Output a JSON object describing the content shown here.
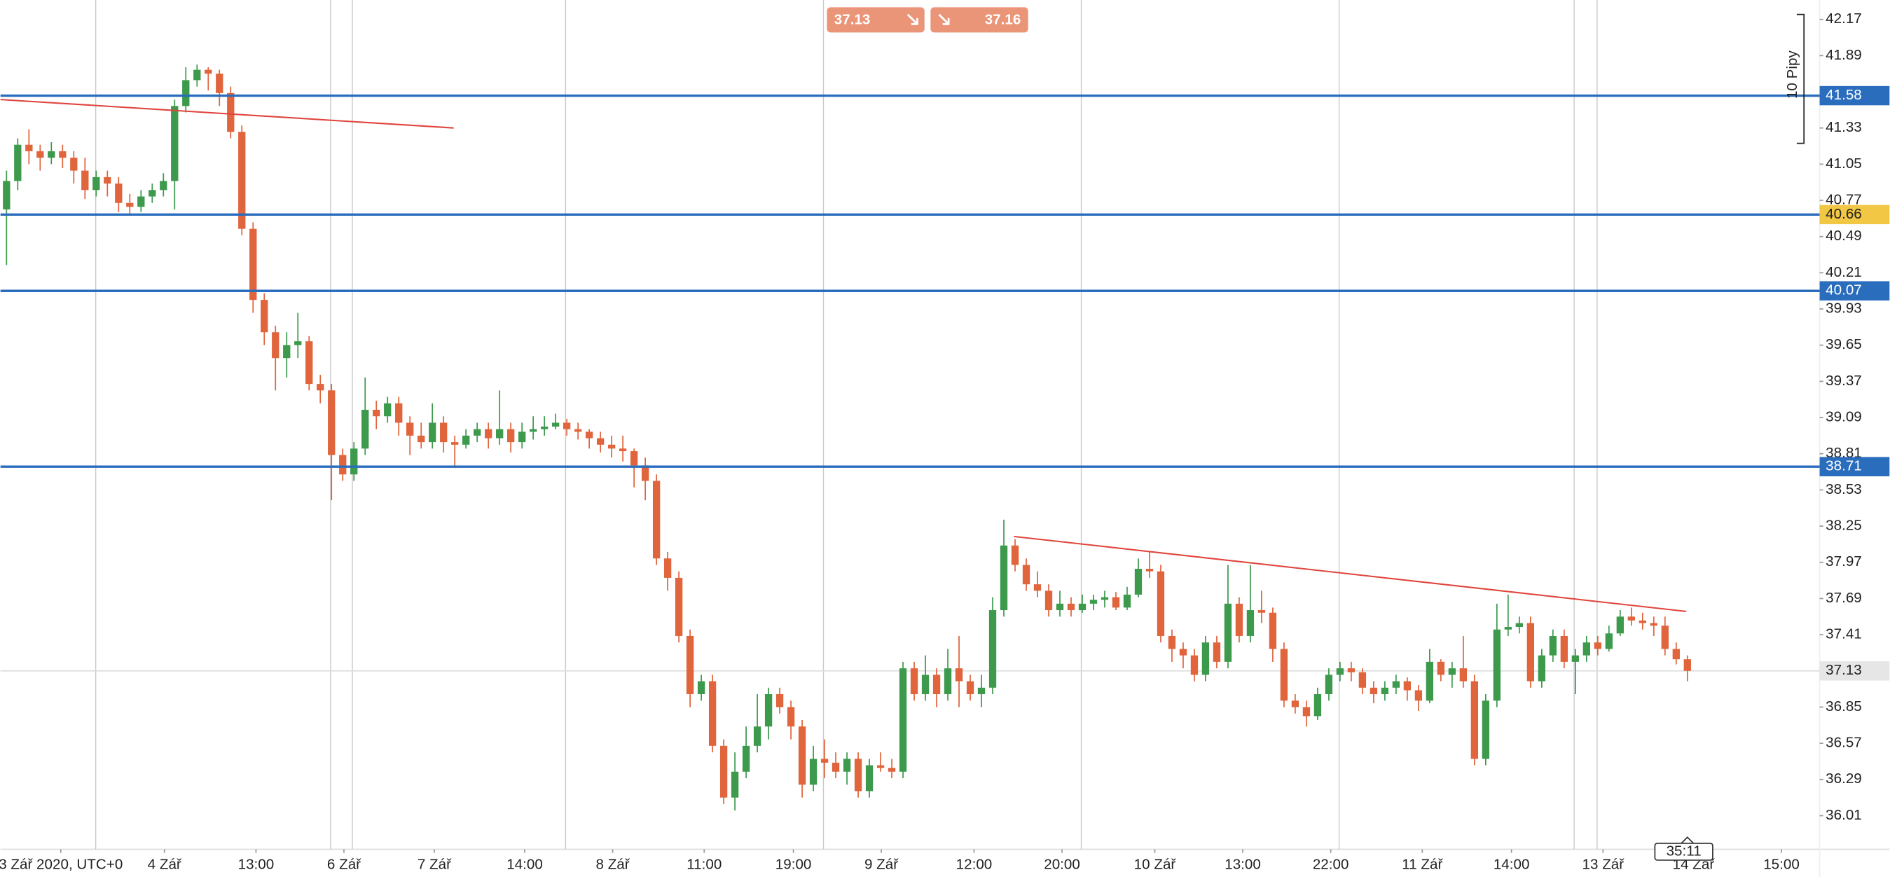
{
  "chart_data": {
    "type": "candlestick",
    "up_color": "#3d9a4d",
    "down_color": "#e0643c",
    "grid": true,
    "ylim": [
      35.75,
      42.32
    ],
    "yticks": [
      36.01,
      36.29,
      36.57,
      36.85,
      37.41,
      37.69,
      37.97,
      38.25,
      38.53,
      38.81,
      39.09,
      39.37,
      39.65,
      39.93,
      40.21,
      40.49,
      40.77,
      41.05,
      41.33,
      41.89,
      42.17
    ],
    "xlim": [
      -0.54,
      161.8
    ],
    "xticks": [
      {
        "value": 4.84,
        "label": "3 Zář 2020, UTC+0"
      },
      {
        "value": 14.09,
        "label": "4 Zář"
      },
      {
        "value": 22.26,
        "label": "13:00"
      },
      {
        "value": 30.11,
        "label": "6 Zář"
      },
      {
        "value": 38.17,
        "label": "7 Zář"
      },
      {
        "value": 46.24,
        "label": "14:00"
      },
      {
        "value": 54.09,
        "label": "8 Zář"
      },
      {
        "value": 62.26,
        "label": "11:00"
      },
      {
        "value": 70.22,
        "label": "19:00"
      },
      {
        "value": 78.06,
        "label": "9 Zář"
      },
      {
        "value": 86.34,
        "label": "12:00"
      },
      {
        "value": 94.19,
        "label": "20:00"
      },
      {
        "value": 102.47,
        "label": "10 Zář"
      },
      {
        "value": 110.32,
        "label": "13:00"
      },
      {
        "value": 118.17,
        "label": "22:00"
      },
      {
        "value": 126.34,
        "label": "11 Zář"
      },
      {
        "value": 134.3,
        "label": "14:00"
      },
      {
        "value": 142.47,
        "label": "13 Zář"
      },
      {
        "value": 150.54,
        "label": "14 Zář"
      },
      {
        "value": 158.39,
        "label": "15:00"
      }
    ],
    "xgrid": [
      7.96,
      28.92,
      30.86,
      49.89,
      72.9,
      95.91,
      118.92,
      139.89,
      141.94
    ],
    "ohlc": [
      [
        40.7,
        41.0,
        40.27,
        40.92
      ],
      [
        40.92,
        41.25,
        40.85,
        41.2
      ],
      [
        41.2,
        41.32,
        41.05,
        41.15
      ],
      [
        41.15,
        41.2,
        41.0,
        41.1
      ],
      [
        41.1,
        41.22,
        41.05,
        41.15
      ],
      [
        41.15,
        41.2,
        41.02,
        41.1
      ],
      [
        41.1,
        41.15,
        40.9,
        41.0
      ],
      [
        41.0,
        41.1,
        40.78,
        40.85
      ],
      [
        40.85,
        41.0,
        40.8,
        40.95
      ],
      [
        40.95,
        41.0,
        40.8,
        40.9
      ],
      [
        40.9,
        40.95,
        40.68,
        40.75
      ],
      [
        40.75,
        40.82,
        40.65,
        40.72
      ],
      [
        40.72,
        40.85,
        40.68,
        40.8
      ],
      [
        40.8,
        40.9,
        40.75,
        40.85
      ],
      [
        40.85,
        40.98,
        40.8,
        40.92
      ],
      [
        40.92,
        41.55,
        40.7,
        41.5
      ],
      [
        41.5,
        41.8,
        41.45,
        41.7
      ],
      [
        41.7,
        41.82,
        41.65,
        41.78
      ],
      [
        41.78,
        41.8,
        41.62,
        41.75
      ],
      [
        41.75,
        41.78,
        41.5,
        41.6
      ],
      [
        41.6,
        41.65,
        41.25,
        41.3
      ],
      [
        41.3,
        41.35,
        40.5,
        40.55
      ],
      [
        40.55,
        40.6,
        39.9,
        40.0
      ],
      [
        40.0,
        40.05,
        39.65,
        39.75
      ],
      [
        39.75,
        39.8,
        39.3,
        39.55
      ],
      [
        39.55,
        39.75,
        39.4,
        39.65
      ],
      [
        39.65,
        39.9,
        39.55,
        39.68
      ],
      [
        39.68,
        39.72,
        39.3,
        39.35
      ],
      [
        39.35,
        39.42,
        39.2,
        39.3
      ],
      [
        39.3,
        39.35,
        38.45,
        38.8
      ],
      [
        38.8,
        38.85,
        38.6,
        38.65
      ],
      [
        38.65,
        38.9,
        38.6,
        38.85
      ],
      [
        38.85,
        39.4,
        38.8,
        39.15
      ],
      [
        39.15,
        39.22,
        39.0,
        39.1
      ],
      [
        39.1,
        39.25,
        39.05,
        39.2
      ],
      [
        39.2,
        39.25,
        38.95,
        39.05
      ],
      [
        39.05,
        39.1,
        38.8,
        38.95
      ],
      [
        38.95,
        39.05,
        38.85,
        38.9
      ],
      [
        38.9,
        39.2,
        38.85,
        39.05
      ],
      [
        39.05,
        39.1,
        38.82,
        38.9
      ],
      [
        38.9,
        38.95,
        38.7,
        38.88
      ],
      [
        38.88,
        39.0,
        38.85,
        38.95
      ],
      [
        38.95,
        39.05,
        38.9,
        39.0
      ],
      [
        39.0,
        39.05,
        38.85,
        38.93
      ],
      [
        38.93,
        39.3,
        38.88,
        39.0
      ],
      [
        39.0,
        39.05,
        38.82,
        38.9
      ],
      [
        38.9,
        39.05,
        38.85,
        38.98
      ],
      [
        38.98,
        39.1,
        38.92,
        39.0
      ],
      [
        39.0,
        39.1,
        38.95,
        39.02
      ],
      [
        39.02,
        39.12,
        39.0,
        39.05
      ],
      [
        39.05,
        39.08,
        38.95,
        39.0
      ],
      [
        39.0,
        39.05,
        38.92,
        38.98
      ],
      [
        38.98,
        39.0,
        38.85,
        38.93
      ],
      [
        38.93,
        38.98,
        38.82,
        38.88
      ],
      [
        38.88,
        38.95,
        38.78,
        38.85
      ],
      [
        38.85,
        38.95,
        38.75,
        38.83
      ],
      [
        38.83,
        38.85,
        38.55,
        38.72
      ],
      [
        38.72,
        38.78,
        38.45,
        38.6
      ],
      [
        38.6,
        38.65,
        37.95,
        38.0
      ],
      [
        38.0,
        38.05,
        37.75,
        37.85
      ],
      [
        37.85,
        37.9,
        37.35,
        37.4
      ],
      [
        37.4,
        37.45,
        36.85,
        36.95
      ],
      [
        36.95,
        37.1,
        36.9,
        37.05
      ],
      [
        37.05,
        37.1,
        36.5,
        36.55
      ],
      [
        36.55,
        36.6,
        36.1,
        36.15
      ],
      [
        36.15,
        36.5,
        36.05,
        36.35
      ],
      [
        36.35,
        36.7,
        36.3,
        36.55
      ],
      [
        36.55,
        36.95,
        36.5,
        36.7
      ],
      [
        36.7,
        37.0,
        36.6,
        36.95
      ],
      [
        36.95,
        37.0,
        36.8,
        36.85
      ],
      [
        36.85,
        36.9,
        36.6,
        36.7
      ],
      [
        36.7,
        36.75,
        36.15,
        36.25
      ],
      [
        36.25,
        36.55,
        36.2,
        36.45
      ],
      [
        36.45,
        36.6,
        36.3,
        36.42
      ],
      [
        36.42,
        36.5,
        36.3,
        36.35
      ],
      [
        36.35,
        36.5,
        36.25,
        36.45
      ],
      [
        36.45,
        36.5,
        36.15,
        36.2
      ],
      [
        36.2,
        36.45,
        36.15,
        36.4
      ],
      [
        36.4,
        36.5,
        36.35,
        36.38
      ],
      [
        36.38,
        36.45,
        36.3,
        36.35
      ],
      [
        36.35,
        37.2,
        36.3,
        37.15
      ],
      [
        37.15,
        37.2,
        36.9,
        36.95
      ],
      [
        36.95,
        37.25,
        36.9,
        37.1
      ],
      [
        37.1,
        37.15,
        36.85,
        36.95
      ],
      [
        36.95,
        37.3,
        36.9,
        37.15
      ],
      [
        37.15,
        37.4,
        36.85,
        37.05
      ],
      [
        37.05,
        37.1,
        36.9,
        36.95
      ],
      [
        36.95,
        37.1,
        36.85,
        37.0
      ],
      [
        37.0,
        37.7,
        36.95,
        37.6
      ],
      [
        37.6,
        38.3,
        37.55,
        38.1
      ],
      [
        38.1,
        38.15,
        37.9,
        37.95
      ],
      [
        37.95,
        38.0,
        37.75,
        37.8
      ],
      [
        37.8,
        37.9,
        37.7,
        37.75
      ],
      [
        37.75,
        37.8,
        37.55,
        37.6
      ],
      [
        37.6,
        37.75,
        37.55,
        37.65
      ],
      [
        37.65,
        37.7,
        37.55,
        37.6
      ],
      [
        37.6,
        37.72,
        37.58,
        37.65
      ],
      [
        37.65,
        37.72,
        37.6,
        37.68
      ],
      [
        37.68,
        37.75,
        37.62,
        37.7
      ],
      [
        37.7,
        37.74,
        37.6,
        37.62
      ],
      [
        37.62,
        37.78,
        37.6,
        37.72
      ],
      [
        37.72,
        38.0,
        37.7,
        37.92
      ],
      [
        37.92,
        38.05,
        37.85,
        37.9
      ],
      [
        37.9,
        37.95,
        37.35,
        37.4
      ],
      [
        37.4,
        37.45,
        37.2,
        37.3
      ],
      [
        37.3,
        37.35,
        37.15,
        37.25
      ],
      [
        37.25,
        37.3,
        37.05,
        37.1
      ],
      [
        37.1,
        37.4,
        37.05,
        37.35
      ],
      [
        37.35,
        37.4,
        37.15,
        37.2
      ],
      [
        37.2,
        37.95,
        37.15,
        37.65
      ],
      [
        37.65,
        37.7,
        37.35,
        37.4
      ],
      [
        37.4,
        37.95,
        37.35,
        37.6
      ],
      [
        37.6,
        37.75,
        37.5,
        37.58
      ],
      [
        37.58,
        37.62,
        37.2,
        37.3
      ],
      [
        37.3,
        37.35,
        36.85,
        36.9
      ],
      [
        36.9,
        36.95,
        36.8,
        36.85
      ],
      [
        36.85,
        36.9,
        36.7,
        36.78
      ],
      [
        36.78,
        37.0,
        36.75,
        36.95
      ],
      [
        36.95,
        37.15,
        36.9,
        37.1
      ],
      [
        37.1,
        37.2,
        37.05,
        37.15
      ],
      [
        37.15,
        37.2,
        37.05,
        37.12
      ],
      [
        37.12,
        37.15,
        36.95,
        37.0
      ],
      [
        37.0,
        37.05,
        36.88,
        36.95
      ],
      [
        36.95,
        37.05,
        36.9,
        37.0
      ],
      [
        37.0,
        37.1,
        36.95,
        37.05
      ],
      [
        37.05,
        37.08,
        36.9,
        36.98
      ],
      [
        36.98,
        37.02,
        36.82,
        36.9
      ],
      [
        36.9,
        37.3,
        36.88,
        37.2
      ],
      [
        37.2,
        37.22,
        37.05,
        37.1
      ],
      [
        37.1,
        37.2,
        37.0,
        37.15
      ],
      [
        37.15,
        37.4,
        37.0,
        37.05
      ],
      [
        37.05,
        37.1,
        36.4,
        36.45
      ],
      [
        36.45,
        36.95,
        36.4,
        36.9
      ],
      [
        36.9,
        37.65,
        36.85,
        37.45
      ],
      [
        37.45,
        37.72,
        37.4,
        37.47
      ],
      [
        37.47,
        37.55,
        37.42,
        37.5
      ],
      [
        37.5,
        37.55,
        37.0,
        37.05
      ],
      [
        37.05,
        37.3,
        37.0,
        37.25
      ],
      [
        37.25,
        37.45,
        37.2,
        37.4
      ],
      [
        37.4,
        37.45,
        37.15,
        37.2
      ],
      [
        37.2,
        37.3,
        36.95,
        37.25
      ],
      [
        37.25,
        37.4,
        37.2,
        37.35
      ],
      [
        37.35,
        37.4,
        37.25,
        37.3
      ],
      [
        37.3,
        37.48,
        37.28,
        37.42
      ],
      [
        37.42,
        37.6,
        37.4,
        37.55
      ],
      [
        37.55,
        37.62,
        37.48,
        37.52
      ],
      [
        37.52,
        37.58,
        37.45,
        37.5
      ],
      [
        37.5,
        37.55,
        37.4,
        37.48
      ],
      [
        37.48,
        37.55,
        37.25,
        37.3
      ],
      [
        37.3,
        37.35,
        37.18,
        37.22
      ],
      [
        37.22,
        37.25,
        37.05,
        37.13
      ]
    ],
    "hlines": [
      {
        "value": 41.58,
        "color": "#2a6dbd",
        "label_color": "#2a6dbd"
      },
      {
        "value": 40.66,
        "color": "#2a6dbd",
        "label_color": "#f2c744"
      },
      {
        "value": 40.07,
        "color": "#2a6dbd",
        "label_color": "#2a6dbd"
      },
      {
        "value": 38.71,
        "color": "#2a6dbd",
        "label_color": "#2a6dbd"
      }
    ],
    "trendlines": [
      {
        "x": [
          -0.54,
          39.9
        ],
        "y": [
          41.55,
          41.33
        ],
        "color": "#e0443c"
      },
      {
        "x": [
          89.9,
          149.9
        ],
        "y": [
          38.17,
          37.59
        ],
        "color": "#e0443c"
      }
    ],
    "last_price": 37.13,
    "sell_price": 37.13,
    "buy_price": 37.16,
    "pip_label": "10 Pipy",
    "countdown": "35:11"
  }
}
